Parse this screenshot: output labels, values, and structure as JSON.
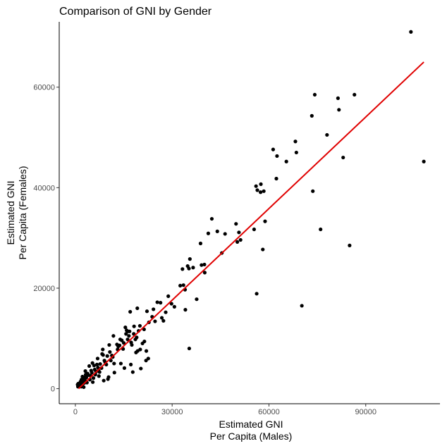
{
  "chart_data": {
    "type": "scatter",
    "title": "Comparison of GNI by Gender",
    "xlabel": [
      "Estimated GNI",
      "Per Capita (Males)"
    ],
    "ylabel": [
      "Estimated GNI",
      "Per Capita (Females)"
    ],
    "xlim": [
      -5000,
      113000
    ],
    "ylim": [
      -3000,
      73000
    ],
    "xticks": [
      0,
      30000,
      60000,
      90000
    ],
    "yticks": [
      0,
      20000,
      40000,
      60000
    ],
    "xtick_labels": [
      "0",
      "30000",
      "60000",
      "90000"
    ],
    "ytick_labels": [
      "0",
      "20000",
      "40000",
      "60000"
    ],
    "grid": false,
    "legend": "none",
    "point_color": "#000000",
    "trend_color": "#e00000",
    "trendline": {
      "x": [
        1000,
        108000
      ],
      "y": [
        0,
        65000
      ]
    },
    "points": [
      [
        104000,
        71000
      ],
      [
        108000,
        45200
      ],
      [
        85000,
        28500
      ],
      [
        83000,
        46000
      ],
      [
        81700,
        55500
      ],
      [
        81400,
        57800
      ],
      [
        86500,
        58500
      ],
      [
        78000,
        50500
      ],
      [
        76000,
        31700
      ],
      [
        74200,
        58500
      ],
      [
        73300,
        54300
      ],
      [
        73600,
        39300
      ],
      [
        70200,
        16500
      ],
      [
        68500,
        47000
      ],
      [
        68200,
        49200
      ],
      [
        65400,
        45200
      ],
      [
        62500,
        46300
      ],
      [
        62300,
        41800
      ],
      [
        61300,
        47600
      ],
      [
        58800,
        33300
      ],
      [
        58100,
        27700
      ],
      [
        58400,
        39300
      ],
      [
        57500,
        40700
      ],
      [
        57400,
        39100
      ],
      [
        56400,
        39500
      ],
      [
        56200,
        18900
      ],
      [
        56000,
        40300
      ],
      [
        55400,
        31700
      ],
      [
        51200,
        29600
      ],
      [
        50700,
        31100
      ],
      [
        50200,
        29200
      ],
      [
        49800,
        32800
      ],
      [
        46400,
        30800
      ],
      [
        45400,
        27000
      ],
      [
        44000,
        31300
      ],
      [
        42300,
        33800
      ],
      [
        41200,
        30900
      ],
      [
        40100,
        23100
      ],
      [
        40000,
        24700
      ],
      [
        39100,
        24600
      ],
      [
        38800,
        28900
      ],
      [
        37600,
        17800
      ],
      [
        35500,
        25800
      ],
      [
        35200,
        23900
      ],
      [
        36500,
        24100
      ],
      [
        34800,
        24400
      ],
      [
        35300,
        8000
      ],
      [
        34000,
        19700
      ],
      [
        34100,
        15700
      ],
      [
        33500,
        20600
      ],
      [
        33200,
        23800
      ],
      [
        32500,
        20500
      ],
      [
        30700,
        16300
      ],
      [
        29800,
        16900
      ],
      [
        28800,
        18400
      ],
      [
        28000,
        15200
      ],
      [
        26800,
        14100
      ],
      [
        26400,
        17100
      ],
      [
        25400,
        17200
      ],
      [
        24700,
        13400
      ],
      [
        23800,
        14300
      ],
      [
        22800,
        13200
      ],
      [
        22600,
        6000
      ],
      [
        22200,
        15400
      ],
      [
        22000,
        7500
      ],
      [
        21900,
        5600
      ],
      [
        21400,
        9400
      ],
      [
        20800,
        9000
      ],
      [
        20300,
        4000
      ],
      [
        20100,
        7800
      ],
      [
        20000,
        12500
      ],
      [
        19600,
        11500
      ],
      [
        19300,
        7500
      ],
      [
        19200,
        16000
      ],
      [
        19000,
        10200
      ],
      [
        18600,
        9800
      ],
      [
        18200,
        12400
      ],
      [
        18100,
        10900
      ],
      [
        17800,
        3300
      ],
      [
        17500,
        8700
      ],
      [
        17300,
        9200
      ],
      [
        17000,
        15300
      ],
      [
        17200,
        4800
      ],
      [
        16800,
        11400
      ],
      [
        16600,
        10500
      ],
      [
        16300,
        11400
      ],
      [
        16200,
        9800
      ],
      [
        15700,
        10900
      ],
      [
        15500,
        12200
      ],
      [
        15200,
        4100
      ],
      [
        15000,
        9100
      ],
      [
        14800,
        7900
      ],
      [
        14400,
        9600
      ],
      [
        14100,
        5000
      ],
      [
        13900,
        9800
      ],
      [
        13300,
        8400
      ],
      [
        13100,
        7800
      ],
      [
        12900,
        8800
      ],
      [
        12100,
        3200
      ],
      [
        12000,
        5000
      ],
      [
        11600,
        6300
      ],
      [
        11300,
        6600
      ],
      [
        11000,
        5600
      ],
      [
        10700,
        7300
      ],
      [
        10500,
        8700
      ],
      [
        10300,
        2300
      ],
      [
        10100,
        1900
      ],
      [
        9900,
        6500
      ],
      [
        9600,
        4800
      ],
      [
        9200,
        5300
      ],
      [
        9000,
        5600
      ],
      [
        8800,
        1600
      ],
      [
        8600,
        6700
      ],
      [
        8300,
        6900
      ],
      [
        8100,
        4100
      ],
      [
        7700,
        4900
      ],
      [
        7500,
        3300
      ],
      [
        7300,
        2500
      ],
      [
        7200,
        3600
      ],
      [
        7000,
        4200
      ],
      [
        6700,
        4800
      ],
      [
        6400,
        3400
      ],
      [
        6200,
        2800
      ],
      [
        6000,
        3800
      ],
      [
        5800,
        4600
      ],
      [
        5600,
        2100
      ],
      [
        5400,
        1300
      ],
      [
        5100,
        3200
      ],
      [
        4900,
        3600
      ],
      [
        4700,
        2600
      ],
      [
        4500,
        1800
      ],
      [
        4300,
        4500
      ],
      [
        4000,
        2700
      ],
      [
        3800,
        3000
      ],
      [
        3600,
        1200
      ],
      [
        3400,
        2200
      ],
      [
        3200,
        2800
      ],
      [
        3000,
        1600
      ],
      [
        2900,
        2300
      ],
      [
        2700,
        1100
      ],
      [
        2600,
        300
      ],
      [
        2500,
        1900
      ],
      [
        2300,
        1500
      ],
      [
        2200,
        2400
      ],
      [
        2100,
        700
      ],
      [
        2000,
        1200
      ],
      [
        1900,
        1800
      ],
      [
        1800,
        400
      ],
      [
        1700,
        1000
      ],
      [
        1600,
        1400
      ],
      [
        1500,
        600
      ],
      [
        1400,
        1100
      ],
      [
        1300,
        800
      ],
      [
        1200,
        500
      ],
      [
        1100,
        900
      ],
      [
        1000,
        700
      ],
      [
        900,
        1000
      ],
      [
        800,
        400
      ],
      [
        700,
        800
      ],
      [
        3100,
        3500
      ],
      [
        5300,
        5100
      ],
      [
        6900,
        6000
      ],
      [
        8500,
        7800
      ],
      [
        11800,
        10500
      ],
      [
        13700,
        8600
      ],
      [
        15900,
        11600
      ],
      [
        18800,
        7200
      ],
      [
        21300,
        11800
      ],
      [
        24200,
        15800
      ],
      [
        27300,
        13500
      ]
    ]
  }
}
